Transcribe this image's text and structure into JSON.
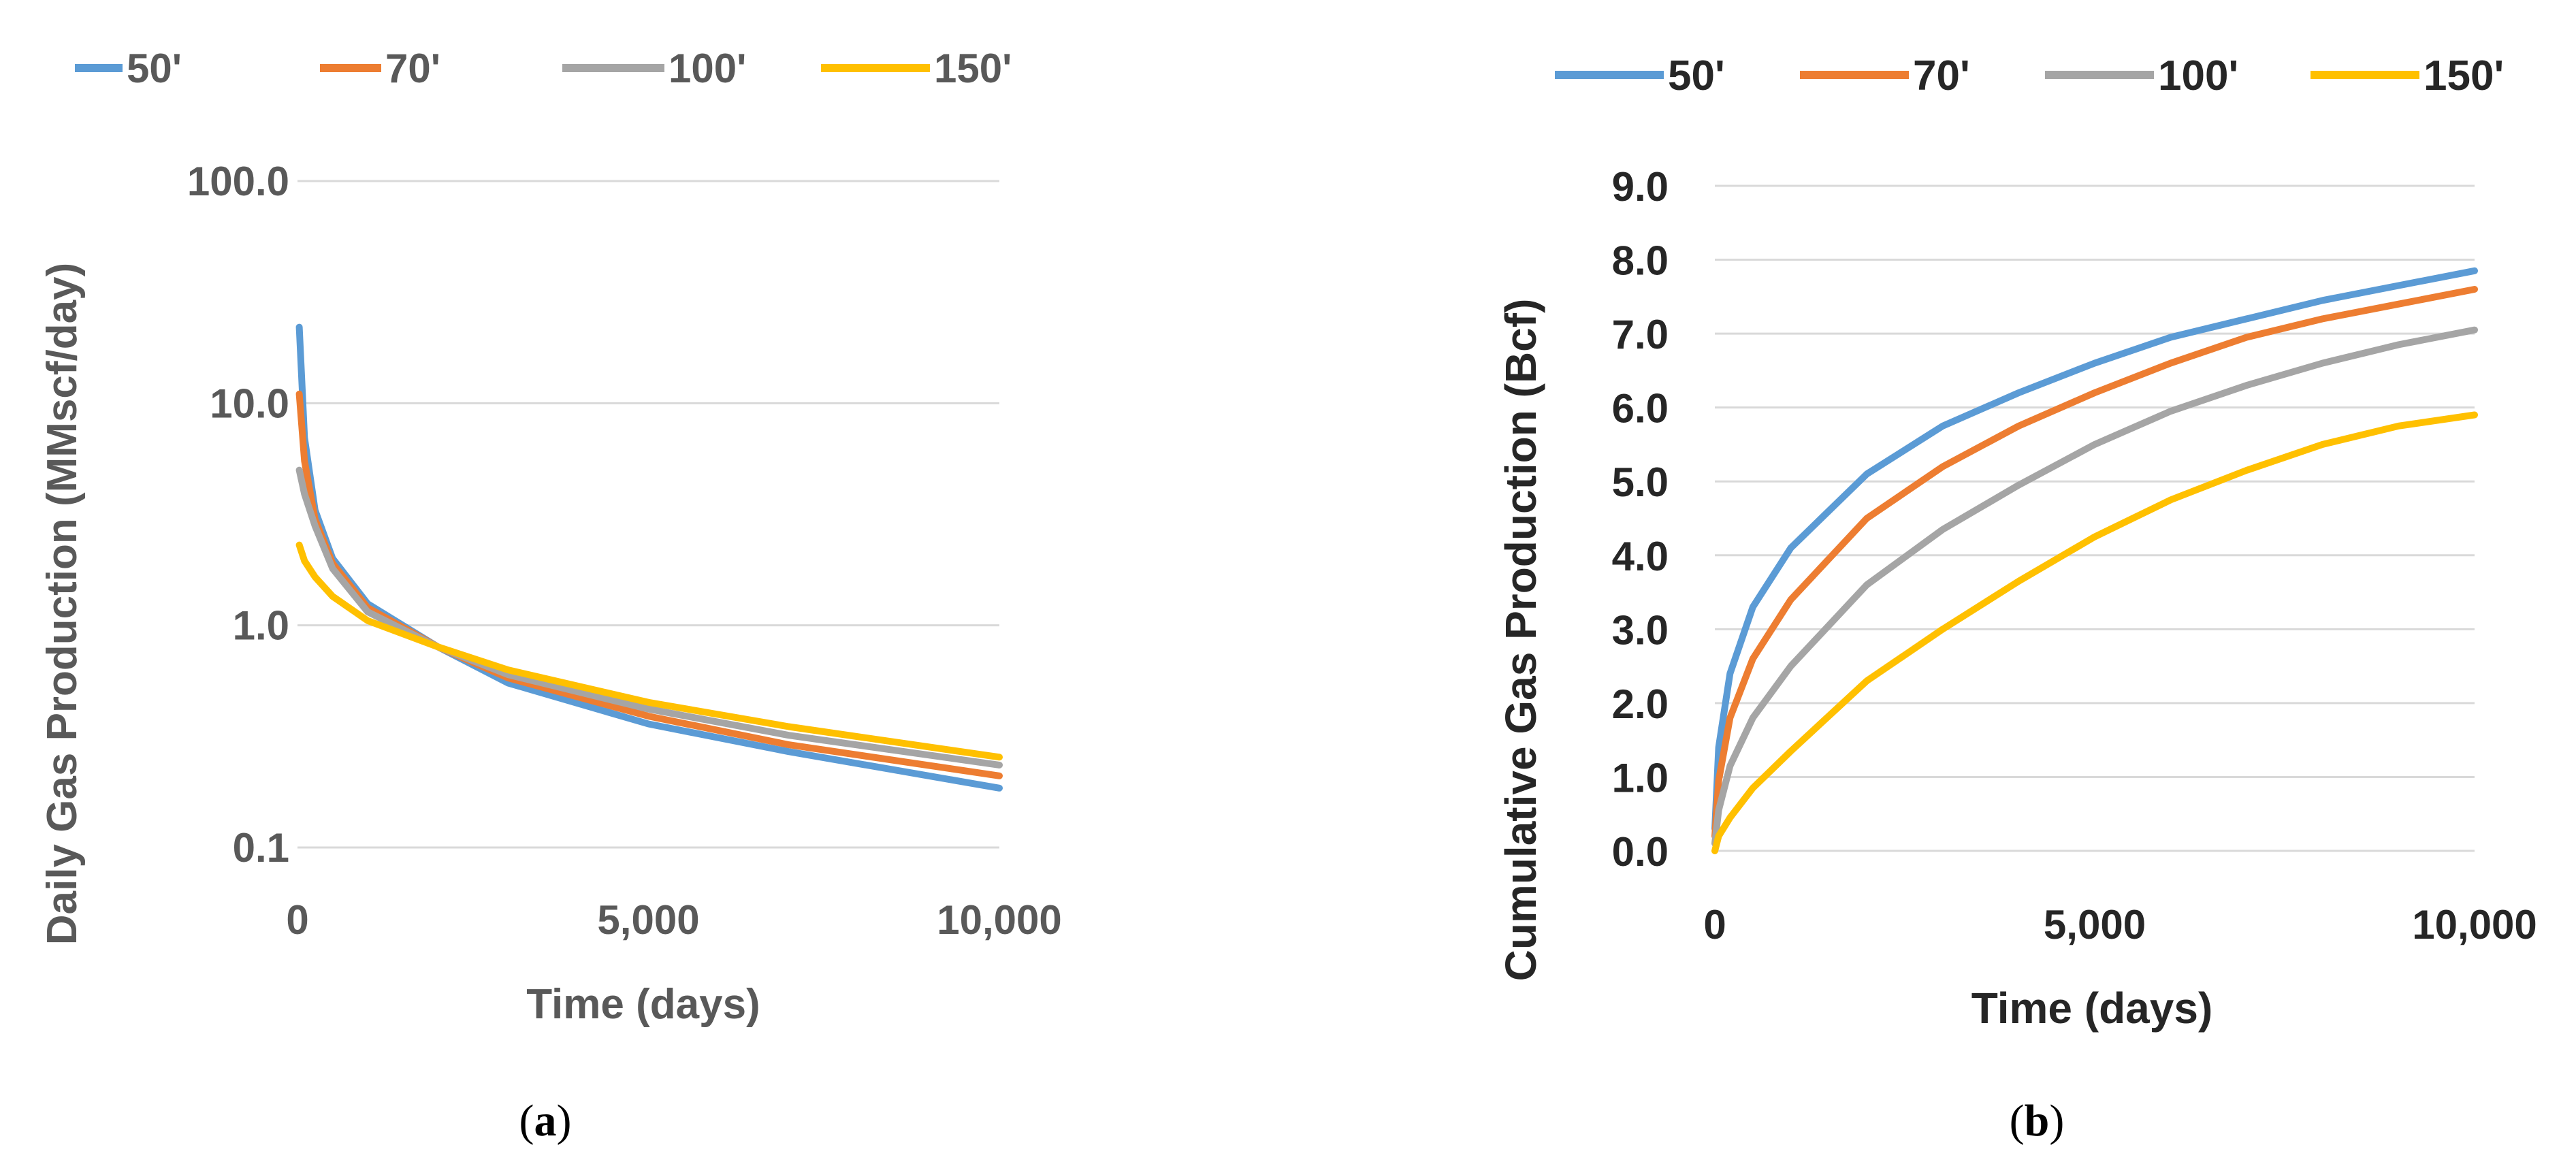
{
  "chart_data": [
    {
      "id": "a",
      "type": "line",
      "caption_prefix": "(",
      "caption_letter": "a",
      "caption_suffix": ")",
      "xlabel": "Time (days)",
      "ylabel": "Daily Gas Production (MMscf/day)",
      "yscale": "log",
      "xlim": [
        0,
        10000
      ],
      "ylim": [
        0.1,
        100
      ],
      "xticks": [
        0,
        5000,
        10000
      ],
      "xtick_labels": [
        "0",
        "5,000",
        "10,000"
      ],
      "yticks": [
        0.1,
        1,
        10,
        100
      ],
      "ytick_labels": [
        "0.1",
        "1.0",
        "10.0",
        "100.0"
      ],
      "legend_position": "top",
      "grid": "horizontal",
      "series": [
        {
          "name": "50'",
          "color": "#5b9bd5",
          "x": [
            25,
            100,
            250,
            500,
            1000,
            2000,
            3000,
            5000,
            7000,
            10000
          ],
          "y": [
            22,
            7,
            3.3,
            2.0,
            1.25,
            0.8,
            0.55,
            0.36,
            0.27,
            0.185
          ]
        },
        {
          "name": "70'",
          "color": "#ed7d31",
          "x": [
            25,
            100,
            250,
            500,
            1000,
            2000,
            3000,
            5000,
            7000,
            10000
          ],
          "y": [
            11,
            5.5,
            3.0,
            1.9,
            1.2,
            0.8,
            0.58,
            0.39,
            0.29,
            0.21
          ]
        },
        {
          "name": "100'",
          "color": "#a5a5a5",
          "x": [
            25,
            100,
            250,
            500,
            1000,
            2000,
            3000,
            5000,
            7000,
            10000
          ],
          "y": [
            5.0,
            3.9,
            2.8,
            1.8,
            1.15,
            0.8,
            0.6,
            0.42,
            0.32,
            0.235
          ]
        },
        {
          "name": "150'",
          "color": "#ffc000",
          "x": [
            25,
            100,
            250,
            500,
            1000,
            2000,
            3000,
            5000,
            7000,
            10000
          ],
          "y": [
            2.3,
            1.95,
            1.65,
            1.35,
            1.05,
            0.8,
            0.63,
            0.45,
            0.35,
            0.255
          ]
        }
      ]
    },
    {
      "id": "b",
      "type": "line",
      "caption_prefix": "(",
      "caption_letter": "b",
      "caption_suffix": ")",
      "xlabel": "Time (days)",
      "ylabel": "Cumulative Gas Production (Bcf)",
      "yscale": "linear",
      "xlim": [
        0,
        10000
      ],
      "ylim": [
        0,
        9
      ],
      "xticks": [
        0,
        5000,
        10000
      ],
      "xtick_labels": [
        "0",
        "5,000",
        "10,000"
      ],
      "yticks": [
        0,
        1,
        2,
        3,
        4,
        5,
        6,
        7,
        8,
        9
      ],
      "ytick_labels": [
        "0.0",
        "1.0",
        "2.0",
        "3.0",
        "4.0",
        "5.0",
        "6.0",
        "7.0",
        "8.0",
        "9.0"
      ],
      "legend_position": "top",
      "grid": "horizontal",
      "series": [
        {
          "name": "50'",
          "color": "#5b9bd5",
          "x": [
            0,
            50,
            200,
            500,
            1000,
            2000,
            3000,
            4000,
            5000,
            6000,
            7000,
            8000,
            9000,
            10000
          ],
          "y": [
            0.3,
            1.4,
            2.4,
            3.3,
            4.1,
            5.1,
            5.75,
            6.2,
            6.6,
            6.95,
            7.2,
            7.45,
            7.65,
            7.85
          ]
        },
        {
          "name": "70'",
          "color": "#ed7d31",
          "x": [
            0,
            50,
            200,
            500,
            1000,
            2000,
            3000,
            4000,
            5000,
            6000,
            7000,
            8000,
            9000,
            10000
          ],
          "y": [
            0.2,
            0.95,
            1.8,
            2.6,
            3.4,
            4.5,
            5.2,
            5.75,
            6.2,
            6.6,
            6.95,
            7.2,
            7.4,
            7.6
          ]
        },
        {
          "name": "100'",
          "color": "#a5a5a5",
          "x": [
            0,
            50,
            200,
            500,
            1000,
            2000,
            3000,
            4000,
            5000,
            6000,
            7000,
            8000,
            9000,
            10000
          ],
          "y": [
            0.1,
            0.55,
            1.15,
            1.8,
            2.5,
            3.6,
            4.35,
            4.95,
            5.5,
            5.95,
            6.3,
            6.6,
            6.85,
            7.05
          ]
        },
        {
          "name": "150'",
          "color": "#ffc000",
          "x": [
            0,
            50,
            200,
            500,
            1000,
            2000,
            3000,
            4000,
            5000,
            6000,
            7000,
            8000,
            9000,
            10000
          ],
          "y": [
            0.0,
            0.2,
            0.45,
            0.85,
            1.35,
            2.3,
            3.0,
            3.65,
            4.25,
            4.75,
            5.15,
            5.5,
            5.75,
            5.9
          ]
        }
      ]
    }
  ]
}
